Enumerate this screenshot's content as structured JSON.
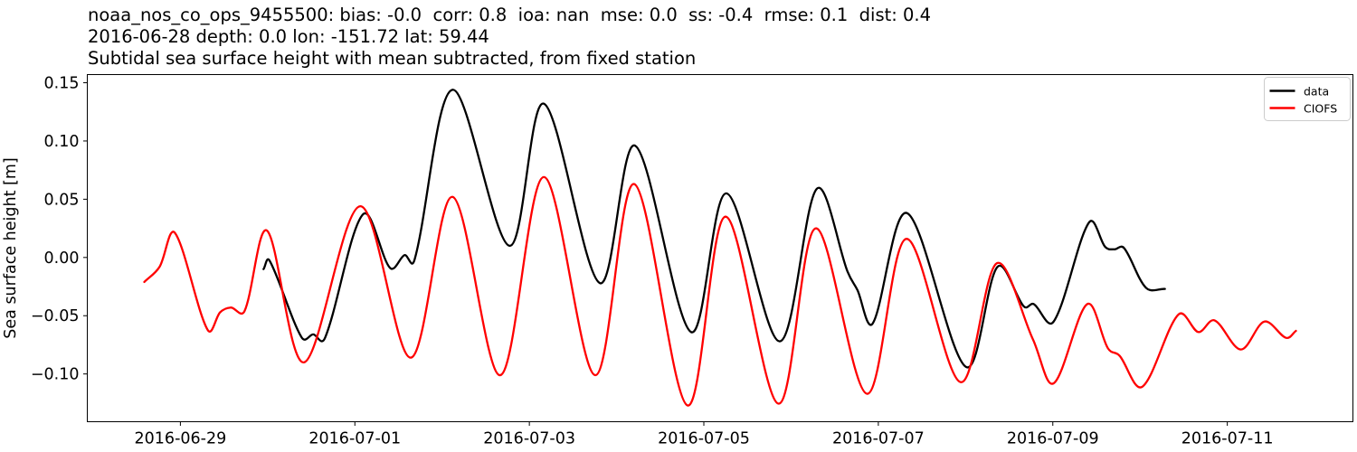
{
  "chart_data": {
    "type": "line",
    "title_lines": [
      "noaa_nos_co_ops_9455500: bias: -0.0  corr: 0.8  ioa: nan  mse: 0.0  ss: -0.4  rmse: 0.1  dist: 0.4",
      "2016-06-28 depth: 0.0 lon: -151.72 lat: 59.44",
      "Subtidal sea surface height with mean subtracted, from fixed station"
    ],
    "ylabel": "Sea surface height [m]",
    "x_units": "days since 2016-06-28 00:00",
    "xlim": [
      -0.067,
      14.44
    ],
    "ylim": [
      -0.141,
      0.157
    ],
    "grid": false,
    "xticks": [
      {
        "day": 1,
        "label": "2016-06-29"
      },
      {
        "day": 3,
        "label": "2016-07-01"
      },
      {
        "day": 5,
        "label": "2016-07-03"
      },
      {
        "day": 7,
        "label": "2016-07-05"
      },
      {
        "day": 9,
        "label": "2016-07-07"
      },
      {
        "day": 11,
        "label": "2016-07-09"
      },
      {
        "day": 13,
        "label": "2016-07-11"
      }
    ],
    "yticks": [
      {
        "value": 0.15,
        "label": "0.15"
      },
      {
        "value": 0.1,
        "label": "0.10"
      },
      {
        "value": 0.05,
        "label": "0.05"
      },
      {
        "value": 0.0,
        "label": "0.00"
      },
      {
        "value": -0.05,
        "label": "−0.05"
      },
      {
        "value": -0.1,
        "label": "−0.10"
      }
    ],
    "legend": {
      "position": "upper right"
    },
    "series": [
      {
        "name": "data",
        "color": "#000000",
        "x_days": [
          1.953,
          2.025,
          2.389,
          2.523,
          2.658,
          3.093,
          3.404,
          3.57,
          3.684,
          4.119,
          4.772,
          5.166,
          5.808,
          6.212,
          6.854,
          7.259,
          7.87,
          8.295,
          8.647,
          8.761,
          8.937,
          9.331,
          10.005,
          10.367,
          10.668,
          10.782,
          11.01,
          11.414,
          11.601,
          11.704,
          11.818,
          12.067,
          12.285
        ],
        "y": [
          -0.01,
          -0.003,
          -0.0685,
          -0.066,
          -0.069,
          0.037,
          -0.009,
          0.002,
          -0.002,
          0.144,
          0.01,
          0.132,
          -0.022,
          0.096,
          -0.064,
          0.055,
          -0.072,
          0.059,
          -0.012,
          -0.028,
          -0.0565,
          0.038,
          -0.094,
          -0.008,
          -0.042,
          -0.04,
          -0.055,
          0.03,
          0.009,
          0.007,
          0.008,
          -0.026,
          -0.027
        ]
      },
      {
        "name": "CIOFS",
        "color": "#ff0000",
        "x_days": [
          0.586,
          0.762,
          0.938,
          1.311,
          1.456,
          1.58,
          1.735,
          1.994,
          2.419,
          3.061,
          3.641,
          4.119,
          4.668,
          5.166,
          5.756,
          6.202,
          6.813,
          7.249,
          7.856,
          8.284,
          8.871,
          9.321,
          9.942,
          10.357,
          10.77,
          11.01,
          11.394,
          11.632,
          11.767,
          12.026,
          12.44,
          12.668,
          12.855,
          13.155,
          13.425,
          13.673,
          13.787
        ],
        "y": [
          -0.021,
          -0.008,
          0.021,
          -0.062,
          -0.047,
          -0.043,
          -0.046,
          0.023,
          -0.09,
          0.044,
          -0.086,
          0.052,
          -0.101,
          0.069,
          -0.101,
          0.063,
          -0.127,
          0.035,
          -0.1255,
          0.025,
          -0.117,
          0.016,
          -0.107,
          -0.005,
          -0.07,
          -0.108,
          -0.04,
          -0.078,
          -0.0845,
          -0.111,
          -0.049,
          -0.064,
          -0.054,
          -0.079,
          -0.055,
          -0.069,
          -0.063
        ]
      }
    ]
  }
}
